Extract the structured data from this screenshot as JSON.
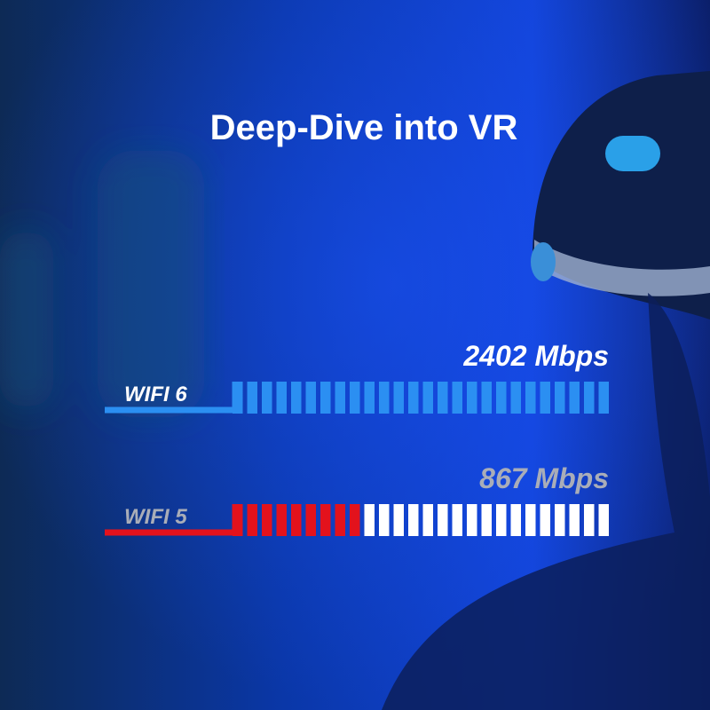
{
  "chart_data": {
    "type": "segmented-bar",
    "title": "Deep-Dive into VR",
    "categories": [
      "WIFI 6",
      "WIFI 5"
    ],
    "values": [
      2402,
      867
    ],
    "value_labels": [
      "2402 Mbps",
      "867 Mbps"
    ],
    "colors": [
      "#2b8ff2",
      "#e3121c"
    ]
  }
}
